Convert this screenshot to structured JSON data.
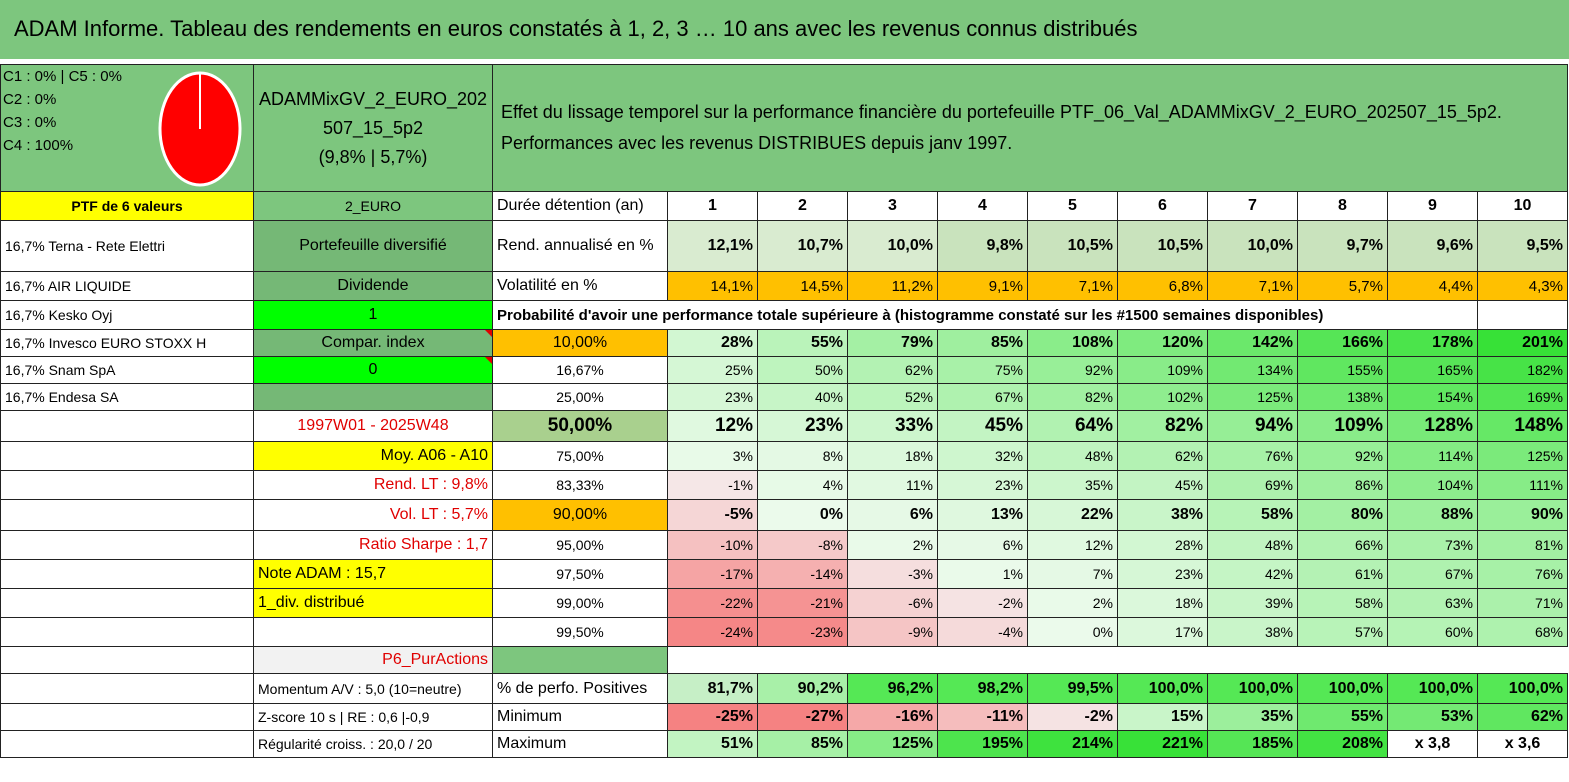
{
  "title": "ADAM Informe. Tableau des rendements en euros constatés à 1, 2, 3 … 10 ans avec les revenus connus distribués",
  "legend": [
    "C1 : 0% | C5 : 0%",
    "C2 : 0%",
    "C3 : 0%",
    "C4 : 100%"
  ],
  "fund": {
    "line1": "ADAMMixGV_2_EURO_202",
    "line2": "507_15_5p2",
    "line3": "(9,8% | 5,7%)"
  },
  "description": {
    "line1": "Effet du lissage temporel sur la performance financière du portefeuille PTF_06_Val_ADAMMixGV_2_EURO_202507_15_5p2.",
    "line2": "Performances avec les revenus DISTRIBUES depuis janv 1997."
  },
  "rows": [
    {
      "name": "PTF de 6 valeurs",
      "info": "2_EURO",
      "label": "Durée détention (an)",
      "vals": [
        "1",
        "2",
        "3",
        "4",
        "5",
        "6",
        "7",
        "8",
        "9",
        "10"
      ]
    },
    {
      "name": "16,7% Terna - Rete Elettri",
      "info": "Portefeuille diversifié",
      "label": "Rend. annualisé en %",
      "vals": [
        "12,1%",
        "10,7%",
        "10,0%",
        "9,8%",
        "10,5%",
        "10,5%",
        "10,0%",
        "9,7%",
        "9,6%",
        "9,5%"
      ]
    },
    {
      "name": "16,7% AIR LIQUIDE",
      "info": "Dividende",
      "label": "Volatilité en %",
      "vals": [
        "14,1%",
        "14,5%",
        "11,2%",
        "9,1%",
        "7,1%",
        "6,8%",
        "7,1%",
        "5,7%",
        "4,4%",
        "4,3%"
      ]
    },
    {
      "name": "16,7% Kesko Oyj",
      "info": "1",
      "label": "Probabilité d'avoir une performance totale supérieure à (histogramme constaté sur les #1500 semaines disponibles)",
      "vals": []
    },
    {
      "name": "16,7% Invesco EURO STOXX H",
      "info": "Compar. index",
      "label": "10,00%",
      "vals": [
        "28%",
        "55%",
        "79%",
        "85%",
        "108%",
        "120%",
        "142%",
        "166%",
        "178%",
        "201%"
      ]
    },
    {
      "name": "16,7% Snam SpA",
      "info": "0",
      "label": "16,67%",
      "vals": [
        "25%",
        "50%",
        "62%",
        "75%",
        "92%",
        "109%",
        "134%",
        "155%",
        "165%",
        "182%"
      ]
    },
    {
      "name": "16,7% Endesa SA",
      "info": "",
      "label": "25,00%",
      "vals": [
        "23%",
        "40%",
        "52%",
        "67%",
        "82%",
        "102%",
        "125%",
        "138%",
        "154%",
        "169%"
      ]
    },
    {
      "name": "",
      "info": "1997W01 - 2025W48",
      "label": "50,00%",
      "vals": [
        "12%",
        "23%",
        "33%",
        "45%",
        "64%",
        "82%",
        "94%",
        "109%",
        "128%",
        "148%"
      ]
    },
    {
      "name": "",
      "info": "Moy. A06 - A10",
      "label": "75,00%",
      "vals": [
        "3%",
        "8%",
        "18%",
        "32%",
        "48%",
        "62%",
        "76%",
        "92%",
        "114%",
        "125%"
      ]
    },
    {
      "name": "",
      "info": "Rend. LT : 9,8%",
      "label": "83,33%",
      "vals": [
        "-1%",
        "4%",
        "11%",
        "23%",
        "35%",
        "45%",
        "69%",
        "86%",
        "104%",
        "111%"
      ]
    },
    {
      "name": "",
      "info": "Vol. LT : 5,7%",
      "label": "90,00%",
      "vals": [
        "-5%",
        "0%",
        "6%",
        "13%",
        "22%",
        "38%",
        "58%",
        "80%",
        "88%",
        "90%"
      ]
    },
    {
      "name": "",
      "info": "Ratio Sharpe : 1,7",
      "label": "95,00%",
      "vals": [
        "-10%",
        "-8%",
        "2%",
        "6%",
        "12%",
        "28%",
        "48%",
        "66%",
        "73%",
        "81%"
      ]
    },
    {
      "name": "",
      "info": "Note ADAM : 15,7",
      "label": "97,50%",
      "vals": [
        "-17%",
        "-14%",
        "-3%",
        "1%",
        "7%",
        "23%",
        "42%",
        "61%",
        "67%",
        "76%"
      ]
    },
    {
      "name": "",
      "info": "1_div. distribué",
      "label": "99,00%",
      "vals": [
        "-22%",
        "-21%",
        "-6%",
        "-2%",
        "2%",
        "18%",
        "39%",
        "58%",
        "63%",
        "71%"
      ]
    },
    {
      "name": "",
      "info": "",
      "label": "99,50%",
      "vals": [
        "-24%",
        "-23%",
        "-9%",
        "-4%",
        "0%",
        "17%",
        "38%",
        "57%",
        "60%",
        "68%"
      ]
    },
    {
      "name": "",
      "info": "P6_PurActions",
      "label": "",
      "vals": []
    },
    {
      "name": "",
      "info": "Momentum A/V : 5,0 (10=neutre)",
      "label": "% de perfo. Positives",
      "vals": [
        "81,7%",
        "90,2%",
        "96,2%",
        "98,2%",
        "99,5%",
        "100,0%",
        "100,0%",
        "100,0%",
        "100,0%",
        "100,0%"
      ]
    },
    {
      "name": "",
      "info": "Z-score 10 s | RE : 0,6 |-0,9",
      "label": "Minimum",
      "vals": [
        "-25%",
        "-27%",
        "-16%",
        "-11%",
        "-2%",
        "15%",
        "35%",
        "55%",
        "53%",
        "62%"
      ]
    },
    {
      "name": "",
      "info": "Régularité croiss. : 20,0 / 20",
      "label": "Maximum",
      "vals": [
        "51%",
        "85%",
        "125%",
        "195%",
        "214%",
        "221%",
        "185%",
        "208%",
        "x 3,8",
        "x 3,6"
      ]
    }
  ],
  "colors": {
    "green": "#7dc67e",
    "yellow": "#ffff00",
    "orange": "#ffc000",
    "lime": "#00ff00",
    "red": "#e00000",
    "bad": "#f08a8a",
    "good": "#55e855"
  }
}
